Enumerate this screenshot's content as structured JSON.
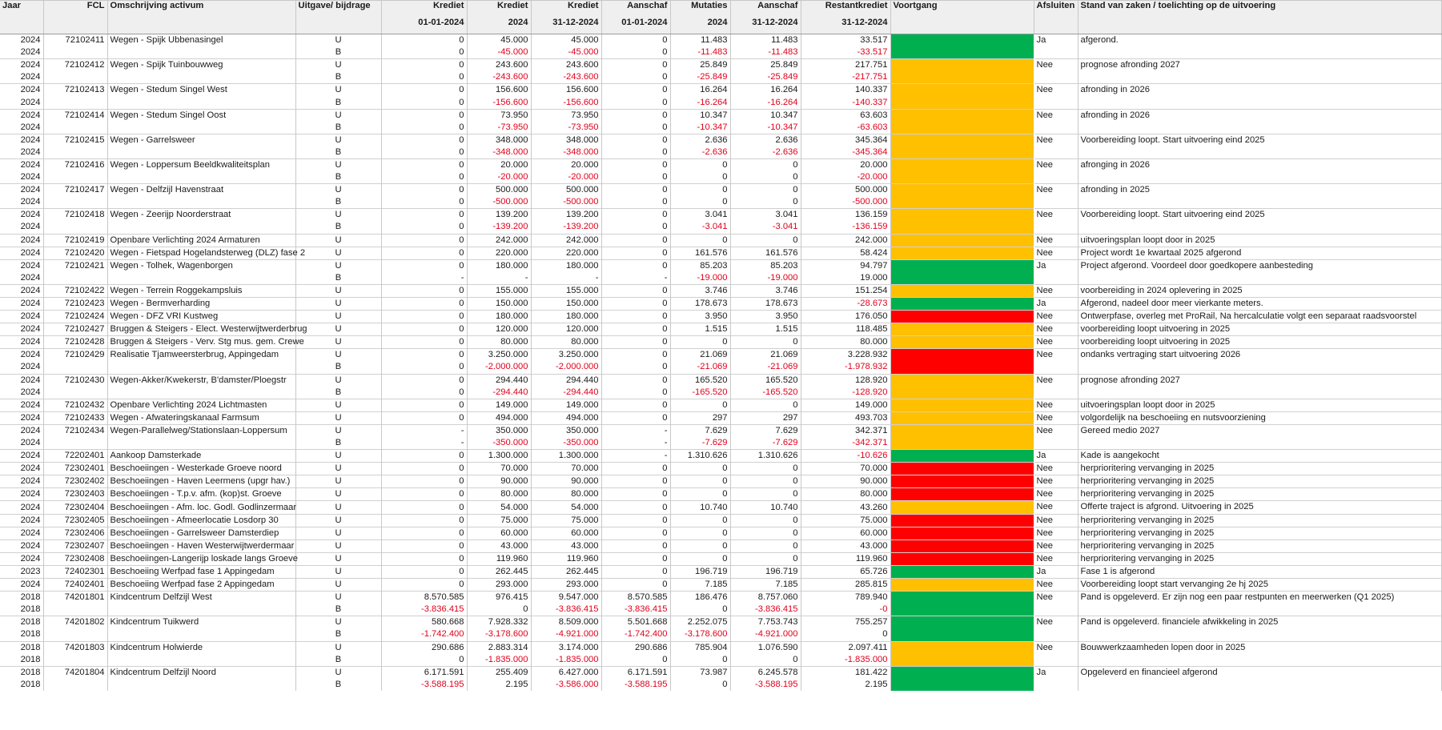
{
  "headers": {
    "jaar": "Jaar",
    "fcl": "FCL",
    "omschrijving": "Omschrijving activum",
    "uitgave": "Uitgave/ bijdrage",
    "krediet1": [
      "Krediet",
      "01-01-2024"
    ],
    "krediet2": [
      "Krediet",
      "2024"
    ],
    "krediet3": [
      "Krediet",
      "31-12-2024"
    ],
    "aanschaf1": [
      "Aanschaf",
      "01-01-2024"
    ],
    "mutaties": [
      "Mutaties",
      "2024"
    ],
    "aanschaf2": [
      "Aanschaf",
      "31-12-2024"
    ],
    "restant": [
      "Restantkrediet",
      "31-12-2024"
    ],
    "voortgang": "Voortgang",
    "afsluiten": "Afsluiten",
    "stand": "Stand van zaken / toelichting op de uitvoering"
  },
  "status_colors": {
    "green": "#00b050",
    "amber": "#ffc000",
    "red": "#ff0000"
  },
  "groups": [
    {
      "status": "green",
      "afsluiten": "Ja",
      "toelichting": "afgerond.",
      "rows": [
        [
          "2024",
          "72102411",
          "Wegen - Spijk Ubbenasingel",
          "U",
          "0",
          "45.000",
          "45.000",
          "0",
          "11.483",
          "11.483",
          "33.517"
        ],
        [
          "2024",
          "",
          "",
          "B",
          "0",
          "-45.000",
          "-45.000",
          "0",
          "-11.483",
          "-11.483",
          "-33.517"
        ]
      ]
    },
    {
      "status": "amber",
      "afsluiten": "Nee",
      "toelichting": "prognose afronding 2027",
      "rows": [
        [
          "2024",
          "72102412",
          "Wegen - Spijk Tuinbouwweg",
          "U",
          "0",
          "243.600",
          "243.600",
          "0",
          "25.849",
          "25.849",
          "217.751"
        ],
        [
          "2024",
          "",
          "",
          "B",
          "0",
          "-243.600",
          "-243.600",
          "0",
          "-25.849",
          "-25.849",
          "-217.751"
        ]
      ]
    },
    {
      "status": "amber",
      "afsluiten": "Nee",
      "toelichting": "afronding in 2026",
      "rows": [
        [
          "2024",
          "72102413",
          "Wegen - Stedum Singel West",
          "U",
          "0",
          "156.600",
          "156.600",
          "0",
          "16.264",
          "16.264",
          "140.337"
        ],
        [
          "2024",
          "",
          "",
          "B",
          "0",
          "-156.600",
          "-156.600",
          "0",
          "-16.264",
          "-16.264",
          "-140.337"
        ]
      ]
    },
    {
      "status": "amber",
      "afsluiten": "Nee",
      "toelichting": "afronding in 2026",
      "rows": [
        [
          "2024",
          "72102414",
          "Wegen - Stedum Singel Oost",
          "U",
          "0",
          "73.950",
          "73.950",
          "0",
          "10.347",
          "10.347",
          "63.603"
        ],
        [
          "2024",
          "",
          "",
          "B",
          "0",
          "-73.950",
          "-73.950",
          "0",
          "-10.347",
          "-10.347",
          "-63.603"
        ]
      ]
    },
    {
      "status": "amber",
      "afsluiten": "Nee",
      "toelichting": "Voorbereiding loopt. Start uitvoering eind 2025",
      "rows": [
        [
          "2024",
          "72102415",
          "Wegen - Garrelsweer",
          "U",
          "0",
          "348.000",
          "348.000",
          "0",
          "2.636",
          "2.636",
          "345.364"
        ],
        [
          "2024",
          "",
          "",
          "B",
          "0",
          "-348.000",
          "-348.000",
          "0",
          "-2.636",
          "-2.636",
          "-345.364"
        ]
      ]
    },
    {
      "status": "amber",
      "afsluiten": "Nee",
      "toelichting": "afronging in 2026",
      "rows": [
        [
          "2024",
          "72102416",
          "Wegen - Loppersum Beeldkwaliteitsplan",
          "U",
          "0",
          "20.000",
          "20.000",
          "0",
          "0",
          "0",
          "20.000"
        ],
        [
          "2024",
          "",
          "",
          "B",
          "0",
          "-20.000",
          "-20.000",
          "0",
          "0",
          "0",
          "-20.000"
        ]
      ]
    },
    {
      "status": "amber",
      "afsluiten": "Nee",
      "toelichting": "afronding in 2025",
      "rows": [
        [
          "2024",
          "72102417",
          "Wegen - Delfzijl Havenstraat",
          "U",
          "0",
          "500.000",
          "500.000",
          "0",
          "0",
          "0",
          "500.000"
        ],
        [
          "2024",
          "",
          "",
          "B",
          "0",
          "-500.000",
          "-500.000",
          "0",
          "0",
          "0",
          "-500.000"
        ]
      ]
    },
    {
      "status": "amber",
      "afsluiten": "Nee",
      "toelichting": "Voorbereiding loopt. Start uitvoering eind 2025",
      "rows": [
        [
          "2024",
          "72102418",
          "Wegen - Zeerijp Noorderstraat",
          "U",
          "0",
          "139.200",
          "139.200",
          "0",
          "3.041",
          "3.041",
          "136.159"
        ],
        [
          "2024",
          "",
          "",
          "B",
          "0",
          "-139.200",
          "-139.200",
          "0",
          "-3.041",
          "-3.041",
          "-136.159"
        ]
      ]
    },
    {
      "status": "amber",
      "afsluiten": "Nee",
      "toelichting": "uitvoeringsplan loopt door in 2025",
      "rows": [
        [
          "2024",
          "72102419",
          "Openbare Verlichting 2024 Armaturen",
          "U",
          "0",
          "242.000",
          "242.000",
          "0",
          "0",
          "0",
          "242.000"
        ]
      ]
    },
    {
      "status": "amber",
      "afsluiten": "Nee",
      "toelichting": "Project wordt 1e kwartaal 2025 afgerond",
      "rows": [
        [
          "2024",
          "72102420",
          "Wegen - Fietspad Hogelandsterweg (DLZ) fase 2",
          "U",
          "0",
          "220.000",
          "220.000",
          "0",
          "161.576",
          "161.576",
          "58.424"
        ]
      ]
    },
    {
      "status": "green",
      "afsluiten": "Ja",
      "toelichting": "Project afgerond. Voordeel door goedkopere aanbesteding",
      "rows": [
        [
          "2024",
          "72102421",
          "Wegen - Tolhek, Wagenborgen",
          "U",
          "0",
          "180.000",
          "180.000",
          "0",
          "85.203",
          "85.203",
          "94.797"
        ],
        [
          "2024",
          "",
          "",
          "B",
          "-",
          "-",
          "-",
          "-",
          "-19.000",
          "-19.000",
          "19.000"
        ]
      ]
    },
    {
      "status": "amber",
      "afsluiten": "Nee",
      "toelichting": "voorbereiding in 2024 oplevering in 2025",
      "rows": [
        [
          "2024",
          "72102422",
          "Wegen - Terrein Roggekampsluis",
          "U",
          "0",
          "155.000",
          "155.000",
          "0",
          "3.746",
          "3.746",
          "151.254"
        ]
      ]
    },
    {
      "status": "green",
      "afsluiten": "Ja",
      "toelichting": "Afgerond, nadeel door meer vierkante meters.",
      "rows": [
        [
          "2024",
          "72102423",
          "Wegen - Bermverharding",
          "U",
          "0",
          "150.000",
          "150.000",
          "0",
          "178.673",
          "178.673",
          "-28.673"
        ]
      ]
    },
    {
      "status": "red",
      "afsluiten": "Nee",
      "toelichting": "Ontwerpfase, overleg met ProRail,  Na hercalculatie volgt een separaat raadsvoorstel",
      "rows": [
        [
          "2024",
          "72102424",
          "Wegen - DFZ VRI Kustweg",
          "U",
          "0",
          "180.000",
          "180.000",
          "0",
          "3.950",
          "3.950",
          "176.050"
        ]
      ]
    },
    {
      "status": "amber",
      "afsluiten": "Nee",
      "toelichting": "voorbereiding loopt uitvoering in 2025",
      "rows": [
        [
          "2024",
          "72102427",
          "Bruggen & Steigers - Elect. Westerwijtwerderbrug",
          "U",
          "0",
          "120.000",
          "120.000",
          "0",
          "1.515",
          "1.515",
          "118.485"
        ]
      ]
    },
    {
      "status": "amber",
      "afsluiten": "Nee",
      "toelichting": "voorbereiding loopt uitvoering in 2025",
      "rows": [
        [
          "2024",
          "72102428",
          "Bruggen & Steigers - Verv. Stg mus. gem. Crewe",
          "U",
          "0",
          "80.000",
          "80.000",
          "0",
          "0",
          "0",
          "80.000"
        ]
      ]
    },
    {
      "status": "red",
      "afsluiten": "Nee",
      "toelichting": "ondanks vertraging start uitvoering 2026",
      "rows": [
        [
          "2024",
          "72102429",
          "Realisatie Tjamweersterbrug, Appingedam",
          "U",
          "0",
          "3.250.000",
          "3.250.000",
          "0",
          "21.069",
          "21.069",
          "3.228.932"
        ],
        [
          "2024",
          "",
          "",
          "B",
          "0",
          "-2.000.000",
          "-2.000.000",
          "0",
          "-21.069",
          "-21.069",
          "-1.978.932"
        ]
      ]
    },
    {
      "status": "amber",
      "afsluiten": "Nee",
      "toelichting": "prognose afronding 2027",
      "rows": [
        [
          "2024",
          "72102430",
          "Wegen-Akker/Kwekerstr, B'damster/Ploegstr",
          "U",
          "0",
          "294.440",
          "294.440",
          "0",
          "165.520",
          "165.520",
          "128.920"
        ],
        [
          "2024",
          "",
          "",
          "B",
          "0",
          "-294.440",
          "-294.440",
          "0",
          "-165.520",
          "-165.520",
          "-128.920"
        ]
      ]
    },
    {
      "status": "amber",
      "afsluiten": "Nee",
      "toelichting": "uitvoeringsplan loopt door in 2025",
      "rows": [
        [
          "2024",
          "72102432",
          "Openbare Verlichting 2024 Lichtmasten",
          "U",
          "0",
          "149.000",
          "149.000",
          "0",
          "0",
          "0",
          "149.000"
        ]
      ]
    },
    {
      "status": "amber",
      "afsluiten": "Nee",
      "toelichting": "volgordelijk na beschoeiing en nutsvoorziening",
      "rows": [
        [
          "2024",
          "72102433",
          "Wegen - Afwateringskanaal Farmsum",
          "U",
          "0",
          "494.000",
          "494.000",
          "0",
          "297",
          "297",
          "493.703"
        ]
      ]
    },
    {
      "status": "amber",
      "afsluiten": "Nee",
      "toelichting": "Gereed medio 2027",
      "rows": [
        [
          "2024",
          "72102434",
          "Wegen-Parallelweg/Stationslaan-Loppersum",
          "U",
          "-",
          "350.000",
          "350.000",
          "-",
          "7.629",
          "7.629",
          "342.371"
        ],
        [
          "2024",
          "",
          "",
          "B",
          "-",
          "-350.000",
          "-350.000",
          "-",
          "-7.629",
          "-7.629",
          "-342.371"
        ]
      ]
    },
    {
      "status": "green",
      "afsluiten": "Ja",
      "toelichting": "Kade is aangekocht",
      "rows": [
        [
          "2024",
          "72202401",
          "Aankoop Damsterkade",
          "U",
          "0",
          "1.300.000",
          "1.300.000",
          "-",
          "1.310.626",
          "1.310.626",
          "-10.626"
        ]
      ]
    },
    {
      "status": "red",
      "afsluiten": "Nee",
      "toelichting": "herprioritering vervanging in 2025",
      "rows": [
        [
          "2024",
          "72302401",
          "Beschoeiingen - Westerkade Groeve noord",
          "U",
          "0",
          "70.000",
          "70.000",
          "0",
          "0",
          "0",
          "70.000"
        ]
      ]
    },
    {
      "status": "red",
      "afsluiten": "Nee",
      "toelichting": "herprioritering vervanging in 2025",
      "rows": [
        [
          "2024",
          "72302402",
          "Beschoeiingen - Haven Leermens (upgr hav.)",
          "U",
          "0",
          "90.000",
          "90.000",
          "0",
          "0",
          "0",
          "90.000"
        ]
      ]
    },
    {
      "status": "red",
      "afsluiten": "Nee",
      "toelichting": "herprioritering vervanging in 2025",
      "rows": [
        [
          "2024",
          "72302403",
          "Beschoeiingen - T.p.v. afm. (kop)st. Groeve",
          "U",
          "0",
          "80.000",
          "80.000",
          "0",
          "0",
          "0",
          "80.000"
        ]
      ]
    },
    {
      "status": "amber",
      "afsluiten": "Nee",
      "toelichting": "Offerte traject is afgrond. Uitvoering in 2025",
      "rows": [
        [
          "2024",
          "72302404",
          "Beschoeiingen - Afm. loc. Godl. Godlinzermaar",
          "U",
          "0",
          "54.000",
          "54.000",
          "0",
          "10.740",
          "10.740",
          "43.260"
        ]
      ]
    },
    {
      "status": "red",
      "afsluiten": "Nee",
      "toelichting": "herprioritering vervanging in 2025",
      "rows": [
        [
          "2024",
          "72302405",
          "Beschoeiingen - Afmeerlocatie  Losdorp 30",
          "U",
          "0",
          "75.000",
          "75.000",
          "0",
          "0",
          "0",
          "75.000"
        ]
      ]
    },
    {
      "status": "red",
      "afsluiten": "Nee",
      "toelichting": "herprioritering vervanging in 2025",
      "rows": [
        [
          "2024",
          "72302406",
          "Beschoeiingen - Garrelsweer Damsterdiep",
          "U",
          "0",
          "60.000",
          "60.000",
          "0",
          "0",
          "0",
          "60.000"
        ]
      ]
    },
    {
      "status": "red",
      "afsluiten": "Nee",
      "toelichting": "herprioritering vervanging in 2025",
      "rows": [
        [
          "2024",
          "72302407",
          "Beschoeiingen - Haven Westerwijtwerdermaar",
          "U",
          "0",
          "43.000",
          "43.000",
          "0",
          "0",
          "0",
          "43.000"
        ]
      ]
    },
    {
      "status": "red",
      "afsluiten": "Nee",
      "toelichting": "herprioritering vervanging in 2025",
      "rows": [
        [
          "2024",
          "72302408",
          "Beschoeiingen-Langerijp loskade langs Groeve",
          "U",
          "0",
          "119.960",
          "119.960",
          "0",
          "0",
          "0",
          "119.960"
        ]
      ]
    },
    {
      "status": "green",
      "afsluiten": "Ja",
      "toelichting": "Fase 1 is afgerond",
      "rows": [
        [
          "2023",
          "72402301",
          "Beschoeiing Werfpad fase 1 Appingedam",
          "U",
          "0",
          "262.445",
          "262.445",
          "0",
          "196.719",
          "196.719",
          "65.726"
        ]
      ]
    },
    {
      "status": "amber",
      "afsluiten": "Nee",
      "toelichting": "Voorbereiding loopt start vervanging 2e hj 2025",
      "rows": [
        [
          "2024",
          "72402401",
          "Beschoeiing Werfpad fase 2 Appingedam",
          "U",
          "0",
          "293.000",
          "293.000",
          "0",
          "7.185",
          "7.185",
          "285.815"
        ]
      ]
    },
    {
      "status": "green",
      "afsluiten": "Nee",
      "toelichting": "Pand is opgeleverd. Er zijn nog een paar restpunten en meerwerken (Q1 2025)",
      "rows": [
        [
          "2018",
          "74201801",
          "Kindcentrum Delfzijl West",
          "U",
          "8.570.585",
          "976.415",
          "9.547.000",
          "8.570.585",
          "186.476",
          "8.757.060",
          "789.940"
        ],
        [
          "2018",
          "",
          "",
          "B",
          "-3.836.415",
          "0",
          "-3.836.415",
          "-3.836.415",
          "0",
          "-3.836.415",
          "-0"
        ]
      ]
    },
    {
      "status": "green",
      "afsluiten": "Nee",
      "toelichting": "Pand is opgeleverd. financiele afwikkeling in 2025",
      "rows": [
        [
          "2018",
          "74201802",
          "Kindcentrum Tuikwerd",
          "U",
          "580.668",
          "7.928.332",
          "8.509.000",
          "5.501.668",
          "2.252.075",
          "7.753.743",
          "755.257"
        ],
        [
          "2018",
          "",
          "",
          "B",
          "-1.742.400",
          "-3.178.600",
          "-4.921.000",
          "-1.742.400",
          "-3.178.600",
          "-4.921.000",
          "0"
        ]
      ]
    },
    {
      "status": "amber",
      "afsluiten": "Nee",
      "toelichting": "Bouwwerkzaamheden lopen door in 2025",
      "rows": [
        [
          "2018",
          "74201803",
          "Kindcentrum Holwierde",
          "U",
          "290.686",
          "2.883.314",
          "3.174.000",
          "290.686",
          "785.904",
          "1.076.590",
          "2.097.411"
        ],
        [
          "2018",
          "",
          "",
          "B",
          "0",
          "-1.835.000",
          "-1.835.000",
          "0",
          "0",
          "0",
          "-1.835.000"
        ]
      ]
    },
    {
      "status": "green",
      "afsluiten": "Ja",
      "toelichting": "Opgeleverd en financieel afgerond",
      "rows": [
        [
          "2018",
          "74201804",
          "Kindcentrum Delfzijl Noord",
          "U",
          "6.171.591",
          "255.409",
          "6.427.000",
          "6.171.591",
          "73.987",
          "6.245.578",
          "181.422"
        ],
        [
          "2018",
          "",
          "",
          "B",
          "-3.588.195",
          "2.195",
          "-3.586.000",
          "-3.588.195",
          "0",
          "-3.588.195",
          "2.195"
        ]
      ]
    }
  ]
}
